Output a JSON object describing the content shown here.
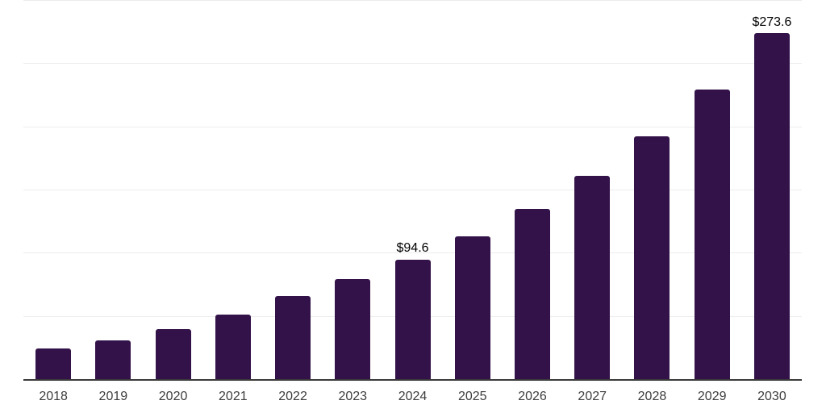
{
  "chart_data": {
    "type": "bar",
    "title": "",
    "xlabel": "",
    "ylabel": "",
    "categories": [
      "2018",
      "2019",
      "2020",
      "2021",
      "2022",
      "2023",
      "2024",
      "2025",
      "2026",
      "2027",
      "2028",
      "2029",
      "2030"
    ],
    "values": [
      24.5,
      30.7,
      39.7,
      51.2,
      65.5,
      78.9,
      94.6,
      112.9,
      134.8,
      160.9,
      192.1,
      229.3,
      273.6
    ],
    "data_labels": {
      "2024": "$94.6",
      "2030": "$273.6"
    },
    "ylim": [
      0,
      300
    ],
    "gridline_step": 50,
    "grid": true,
    "legend": "none",
    "colors": {
      "bar": "#331249",
      "axis": "#3a3a3a",
      "gridline": "#ececec",
      "tick_label": "#3d3d3d",
      "data_label": "#000000",
      "background": "#ffffff"
    }
  }
}
